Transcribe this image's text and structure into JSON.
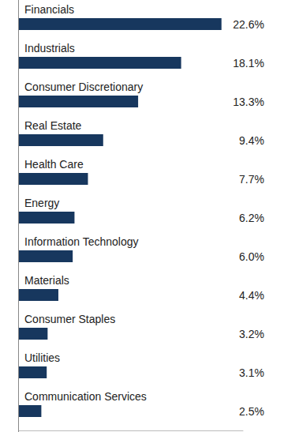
{
  "chart_data": {
    "type": "bar",
    "orientation": "horizontal",
    "categories": [
      "Financials",
      "Industrials",
      "Consumer Discretionary",
      "Real Estate",
      "Health Care",
      "Energy",
      "Information Technology",
      "Materials",
      "Consumer Staples",
      "Utilities",
      "Communication Services"
    ],
    "values": [
      22.6,
      18.1,
      13.3,
      9.4,
      7.7,
      6.2,
      6.0,
      4.4,
      3.2,
      3.1,
      2.5
    ],
    "value_labels": [
      "22.6%",
      "18.1%",
      "13.3%",
      "9.4%",
      "7.7%",
      "6.2%",
      "6.0%",
      "4.4%",
      "3.2%",
      "3.1%",
      "2.5%"
    ],
    "color": "#17375e",
    "xlim": [
      0,
      25
    ],
    "data_labels": true,
    "tick_labels": false,
    "grid": false
  }
}
